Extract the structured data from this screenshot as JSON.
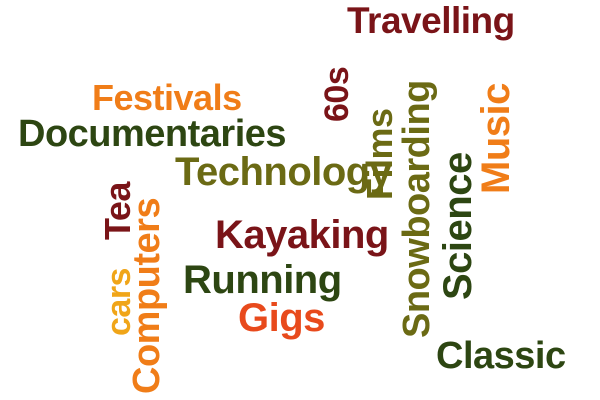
{
  "words": {
    "travelling": {
      "text": "Travelling",
      "color": "#7a1418"
    },
    "festivals": {
      "text": "Festivals",
      "color": "#f07d18"
    },
    "documentaries": {
      "text": "Documentaries",
      "color": "#2d4612"
    },
    "technology": {
      "text": "Technology",
      "color": "#6b6a14"
    },
    "kayaking": {
      "text": "Kayaking",
      "color": "#7a1418"
    },
    "running": {
      "text": "Running",
      "color": "#2d4612"
    },
    "gigs": {
      "text": "Gigs",
      "color": "#e84a1c"
    },
    "classic": {
      "text": "Classic",
      "color": "#2d4612"
    },
    "sixties": {
      "text": "60s",
      "color": "#7a1418"
    },
    "films": {
      "text": "Films",
      "color": "#6b6a14"
    },
    "snowboarding": {
      "text": "Snowboarding",
      "color": "#6b6a14"
    },
    "science": {
      "text": "Science",
      "color": "#2d4612"
    },
    "music": {
      "text": "Music",
      "color": "#f07d18"
    },
    "tea": {
      "text": "Tea",
      "color": "#7a1418"
    },
    "cars": {
      "text": "cars",
      "color": "#f0a518"
    },
    "computers": {
      "text": "Computers",
      "color": "#f07d18"
    }
  }
}
